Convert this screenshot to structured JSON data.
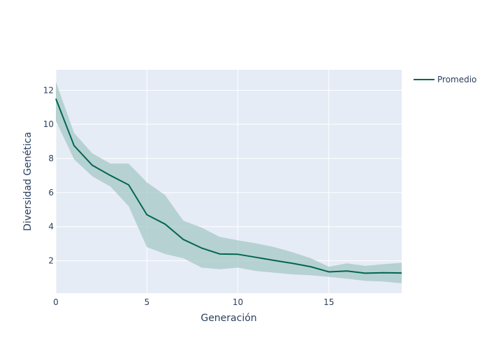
{
  "chart_data": {
    "type": "line",
    "title": "",
    "xlabel": "Generación",
    "ylabel": "Diversidad Genética",
    "xlim": [
      0,
      19
    ],
    "ylim": [
      0.1,
      13.2
    ],
    "xticks": [
      0,
      5,
      10,
      15
    ],
    "yticks": [
      2,
      4,
      6,
      8,
      10,
      12
    ],
    "grid": true,
    "legend_position": "top-right",
    "colors": {
      "line": "#00664f",
      "band": "#a6c8c6",
      "plot_bg": "#e5ecf6",
      "grid": "#ffffff",
      "text": "#2a3f5f"
    },
    "x": [
      0,
      1,
      2,
      3,
      4,
      5,
      6,
      7,
      8,
      9,
      10,
      11,
      12,
      13,
      14,
      15,
      16,
      17,
      18,
      19
    ],
    "series": [
      {
        "name": "Promedio",
        "values": [
          11.5,
          8.75,
          7.6,
          7.0,
          6.45,
          4.7,
          4.15,
          3.25,
          2.75,
          2.4,
          2.38,
          2.2,
          2.02,
          1.85,
          1.65,
          1.35,
          1.4,
          1.27,
          1.3,
          1.28
        ],
        "upper": [
          12.5,
          9.5,
          8.3,
          7.7,
          7.7,
          6.6,
          5.85,
          4.35,
          3.95,
          3.4,
          3.2,
          3.02,
          2.8,
          2.5,
          2.15,
          1.65,
          1.85,
          1.7,
          1.8,
          1.88
        ],
        "lower": [
          10.2,
          7.95,
          6.95,
          6.35,
          5.2,
          2.8,
          2.4,
          2.15,
          1.6,
          1.5,
          1.6,
          1.4,
          1.3,
          1.2,
          1.15,
          1.05,
          0.95,
          0.82,
          0.78,
          0.68
        ],
        "show_in_legend": true
      }
    ]
  }
}
